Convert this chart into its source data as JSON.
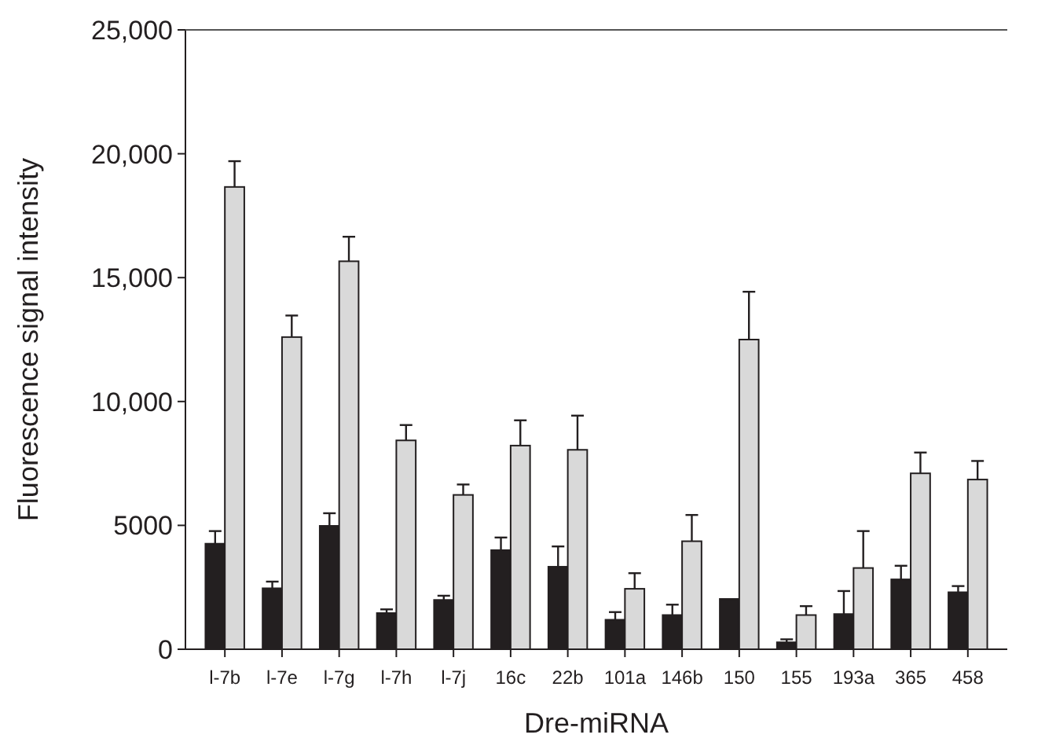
{
  "chart_data": {
    "type": "bar",
    "xlabel": "Dre-miRNA",
    "ylabel": "Fluorescence signal intensity",
    "categories": [
      "l-7b",
      "l-7e",
      "l-7g",
      "l-7h",
      "l-7j",
      "16c",
      "22b",
      "101a",
      "146b",
      "150",
      "155",
      "193a",
      "365",
      "458"
    ],
    "series": [
      {
        "color": "#231f20",
        "values": [
          4260,
          2460,
          4980,
          1460,
          1990,
          4000,
          3330,
          1190,
          1380,
          2030,
          280,
          1420,
          2820,
          2300
        ],
        "errors": [
          [
            4260,
            4770
          ],
          [
            2460,
            2730
          ],
          [
            4980,
            5490
          ],
          [
            1460,
            1610
          ],
          [
            1990,
            2160
          ],
          [
            4000,
            4510
          ],
          [
            3330,
            4150
          ],
          [
            1190,
            1500
          ],
          [
            1380,
            1800
          ],
          null,
          [
            280,
            400
          ],
          [
            1420,
            2350
          ],
          [
            2820,
            3370
          ],
          [
            2300,
            2550
          ]
        ]
      },
      {
        "color": "#d9d9d9",
        "values": [
          18660,
          12600,
          15660,
          8430,
          6230,
          8220,
          8050,
          2440,
          4360,
          12500,
          1380,
          3280,
          7100,
          6850
        ],
        "errors": [
          [
            18660,
            19700
          ],
          [
            12600,
            13470
          ],
          [
            15660,
            16650
          ],
          [
            8430,
            9050
          ],
          [
            6230,
            6650
          ],
          [
            8220,
            9240
          ],
          [
            8050,
            9430
          ],
          [
            2440,
            3070
          ],
          [
            4360,
            5420
          ],
          [
            12500,
            14430
          ],
          [
            1380,
            1740
          ],
          [
            3280,
            4770
          ],
          [
            7100,
            7940
          ],
          [
            6850,
            7600
          ]
        ]
      }
    ],
    "ylim": [
      0,
      25000
    ],
    "yticks": [
      0,
      5000,
      {
        "value": 10000,
        "label": "10,000"
      },
      {
        "value": 15000,
        "label": "15,000"
      },
      {
        "value": 20000,
        "label": "20,000"
      },
      {
        "value": 25000,
        "label": "25,000"
      }
    ],
    "grid": false
  }
}
